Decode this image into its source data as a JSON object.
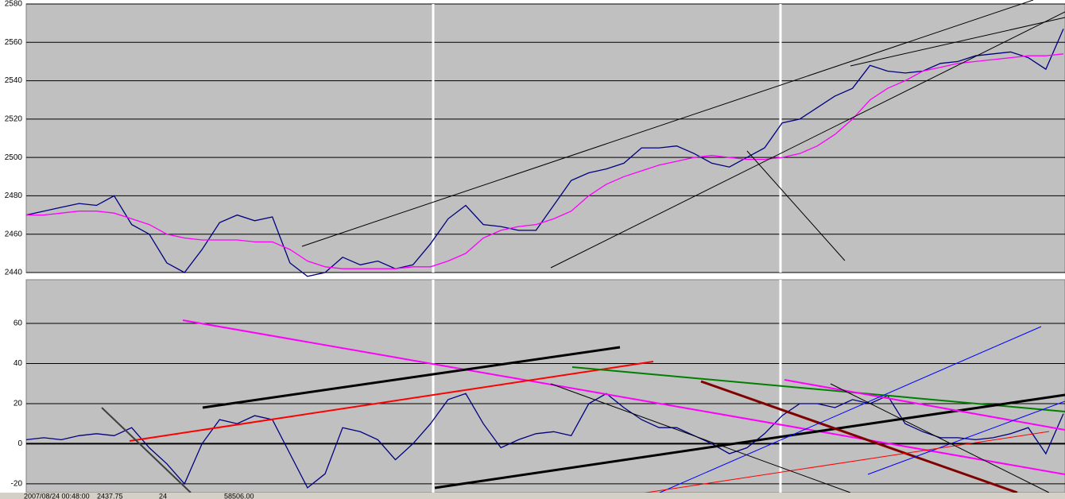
{
  "chart_data": [
    {
      "type": "line",
      "categories": [
        null,
        null,
        null,
        null,
        null,
        null,
        null,
        null,
        null,
        null,
        null,
        null,
        null,
        null,
        null,
        null,
        null,
        null,
        null,
        null,
        null,
        null,
        null,
        null,
        null,
        null,
        null,
        null,
        null,
        null,
        null,
        null,
        null,
        null,
        null,
        null,
        null,
        null,
        null,
        null,
        null,
        null,
        null,
        null,
        null,
        null,
        null,
        null,
        null,
        null,
        null,
        null,
        null,
        null,
        null,
        null,
        null,
        null,
        null,
        null
      ],
      "series": [
        {
          "color": "#000080",
          "values": [
            2470,
            2472,
            2474,
            2476,
            2475,
            2480,
            2465,
            2460,
            2445,
            2440,
            2452,
            2466,
            2470,
            2467,
            2469,
            2445,
            2438,
            2440,
            2448,
            2444,
            2446,
            2442,
            2444,
            2455,
            2468,
            2475,
            2465,
            2464,
            2462,
            2462,
            2475,
            2488,
            2492,
            2494,
            2497,
            2505,
            2505,
            2506,
            2502,
            2497,
            2495,
            2500,
            2505,
            2518,
            2520,
            2526,
            2532,
            2536,
            2548,
            2545,
            2544,
            2545,
            2549,
            2550,
            2553,
            2554,
            2555,
            2552,
            2546,
            2567
          ]
        },
        {
          "color": "#ff00ff",
          "values": [
            2470,
            2470,
            2471,
            2472,
            2472,
            2471,
            2468,
            2465,
            2460,
            2458,
            2457,
            2457,
            2457,
            2456,
            2456,
            2452,
            2446,
            2443,
            2442,
            2442,
            2442,
            2442,
            2443,
            2443,
            2446,
            2450,
            2458,
            2462,
            2464,
            2465,
            2468,
            2472,
            2480,
            2486,
            2490,
            2493,
            2496,
            2498,
            2500,
            2501,
            2500,
            2499,
            2499,
            2500,
            2502,
            2506,
            2512,
            2520,
            2530,
            2536,
            2540,
            2545,
            2547,
            2549,
            2550,
            2551,
            2552,
            2553,
            2553,
            2554
          ]
        }
      ],
      "ylim": [
        2440,
        2580
      ],
      "yticks": [
        2440,
        2460,
        2480,
        2500,
        2520,
        2540,
        2560,
        2580
      ],
      "grid": true
    },
    {
      "type": "line",
      "categories": [
        null,
        null,
        null,
        null,
        null,
        null,
        null,
        null,
        null,
        null,
        null,
        null,
        null,
        null,
        null,
        null,
        null,
        null,
        null,
        null,
        null,
        null,
        null,
        null,
        null,
        null,
        null,
        null,
        null,
        null,
        null,
        null,
        null,
        null,
        null,
        null,
        null,
        null,
        null,
        null,
        null,
        null,
        null,
        null,
        null,
        null,
        null,
        null,
        null,
        null,
        null,
        null,
        null,
        null,
        null,
        null,
        null,
        null,
        null,
        null
      ],
      "series": [
        {
          "color": "#000080",
          "values": [
            2,
            3,
            2,
            4,
            5,
            4,
            8,
            -2,
            -10,
            -20,
            0,
            12,
            10,
            14,
            12,
            -5,
            -22,
            -15,
            8,
            6,
            2,
            -8,
            0,
            10,
            22,
            25,
            10,
            -2,
            2,
            5,
            6,
            4,
            20,
            25,
            18,
            12,
            8,
            8,
            4,
            0,
            -5,
            -2,
            5,
            14,
            20,
            20,
            18,
            22,
            20,
            24,
            10,
            6,
            3,
            3,
            2,
            3,
            5,
            8,
            -5,
            15
          ]
        }
      ],
      "ylim": [
        -24.4,
        81.8
      ],
      "yticks": [
        -20,
        0,
        20,
        40,
        60
      ],
      "grid": true
    }
  ],
  "status_bar": [
    "2007/08/24 00:48:00",
    "2437.75",
    "24",
    "58506.00"
  ]
}
